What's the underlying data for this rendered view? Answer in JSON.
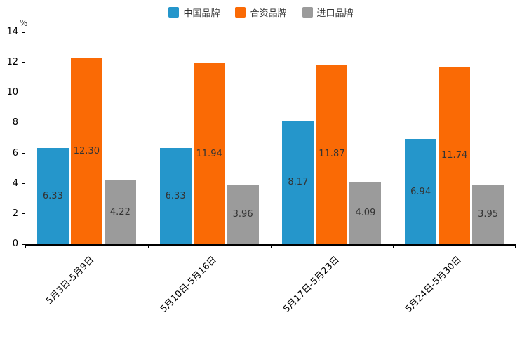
{
  "chart_data": {
    "type": "bar",
    "title": "",
    "unit": "%",
    "categories": [
      "5月3日-5月9日",
      "5月10日-5月16日",
      "5月17日-5月23日",
      "5月24日-5月30日"
    ],
    "series": [
      {
        "id": "china-brands",
        "name": "中国品牌",
        "color": "#2596cb",
        "values": [
          6.33,
          6.33,
          8.17,
          6.94
        ]
      },
      {
        "id": "joint-venture-brands",
        "name": "合资品牌",
        "color": "#fa6a05",
        "values": [
          12.3,
          11.94,
          11.87,
          11.74
        ]
      },
      {
        "id": "import-brands",
        "name": "进口品牌",
        "color": "#9b9b9b",
        "values": [
          4.22,
          3.96,
          4.09,
          3.95
        ]
      }
    ],
    "ylim": [
      0,
      14
    ],
    "yticks": [
      0,
      2,
      4,
      6,
      8,
      10,
      12,
      14
    ],
    "value_label_decimals": 2,
    "legend_position": "top",
    "grid": false,
    "bar_label_position": "inside-center",
    "x_label_rotation": -45
  }
}
